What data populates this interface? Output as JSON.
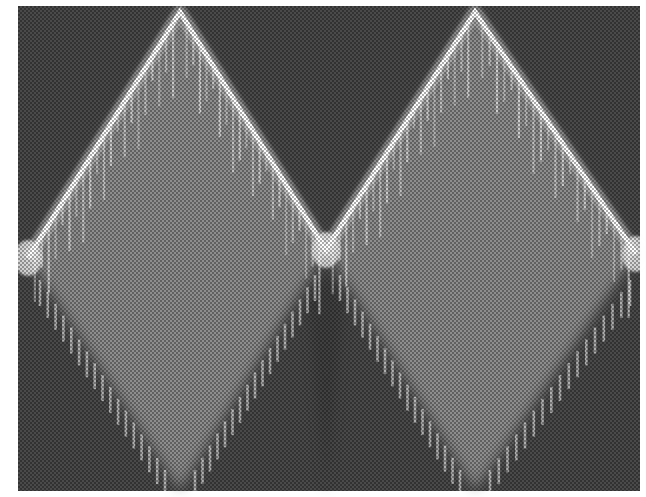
{
  "figure": {
    "kind": "halftone-oscilloscope-trace",
    "colors": {
      "background": "#ffffff",
      "screen_light": "#9a9a9a",
      "screen_dark": "#3c3c3c",
      "trace": "#ffffff",
      "halftone_ink": "#000000"
    },
    "waveform": {
      "shape": "triangle",
      "cycles_visible": 2
    }
  }
}
